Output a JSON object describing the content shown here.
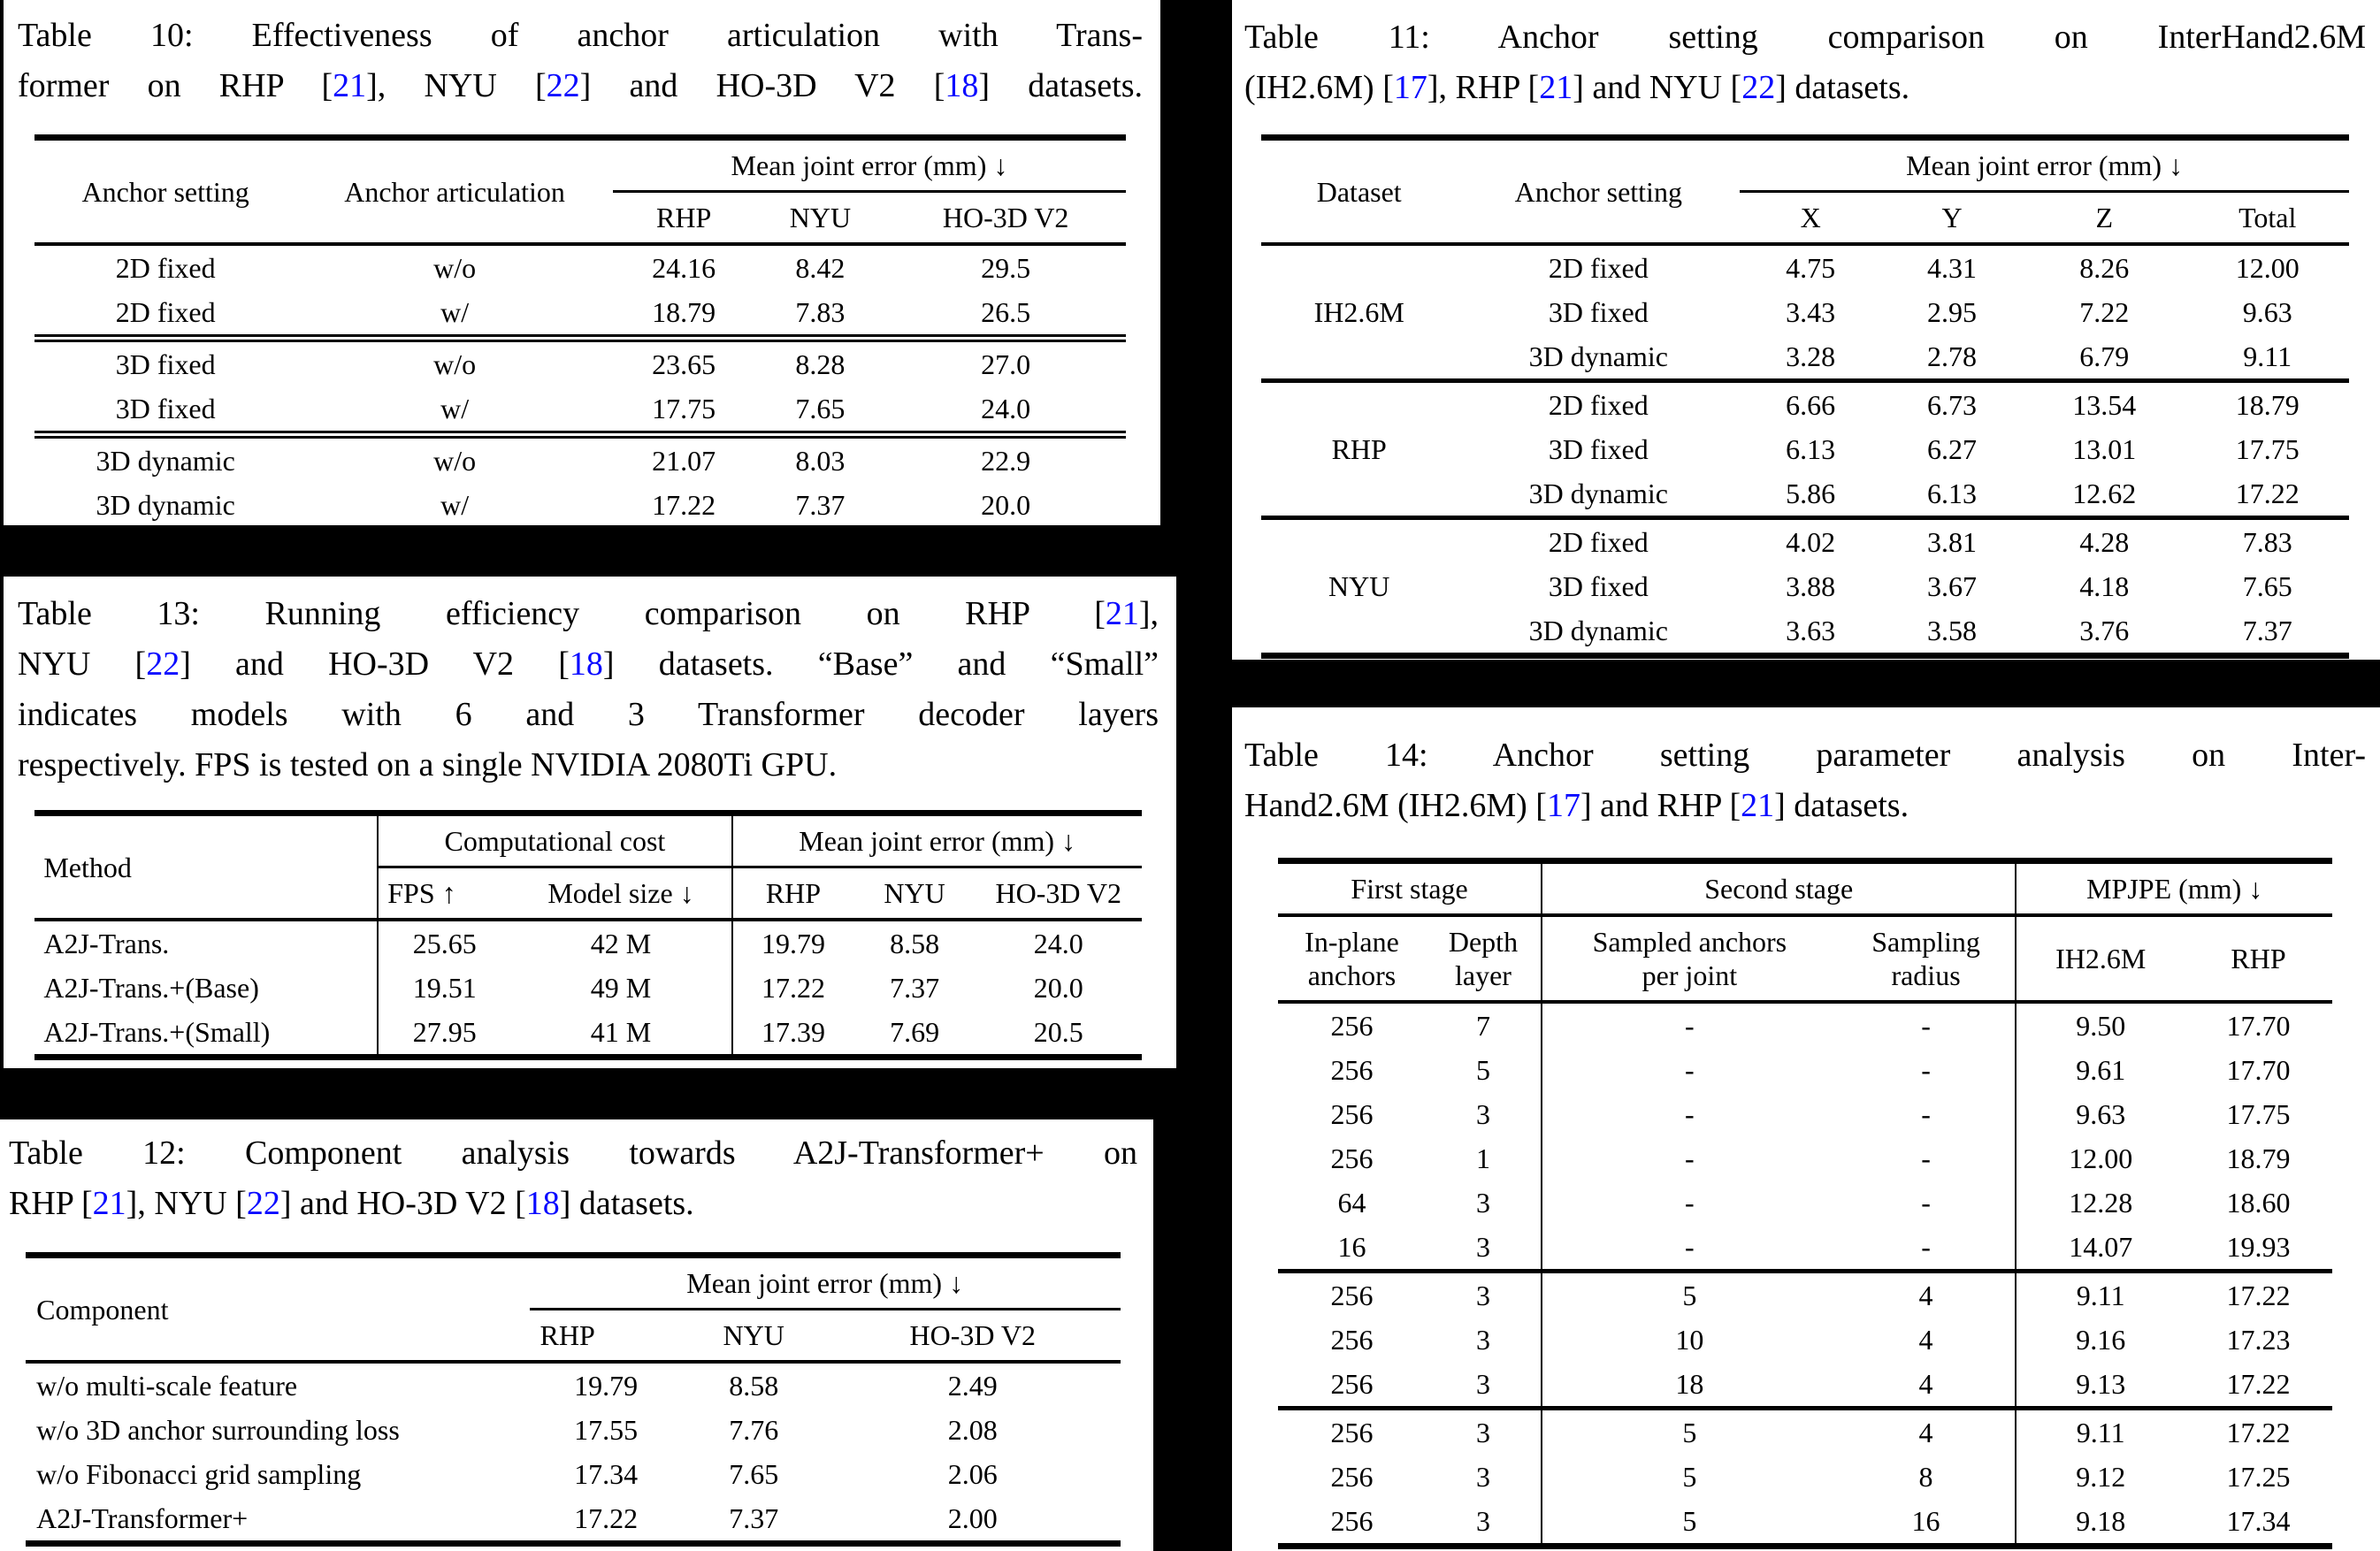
{
  "page": {
    "background": "#000000",
    "panel_background": "#ffffff",
    "text_color": "#000000",
    "citation_color": "#0a0aff"
  },
  "tables": {
    "t10": {
      "caption": {
        "justify_last": true,
        "lines": [
          [
            {
              "t": "Table 10: Effectiveness of anchor articulation with Trans-"
            }
          ],
          [
            {
              "t": "former on RHP ["
            },
            {
              "t": "21",
              "c": true
            },
            {
              "t": "], NYU ["
            },
            {
              "t": "22",
              "c": true
            },
            {
              "t": "] and HO-3D V2 ["
            },
            {
              "t": "18",
              "c": true
            },
            {
              "t": "] datasets."
            }
          ]
        ]
      },
      "headers": {
        "anchor_setting": "Anchor setting",
        "anchor_articulation": "Anchor articulation",
        "mean_joint_error": "Mean joint error (mm) ↓",
        "sub": [
          "RHP",
          "NYU",
          "HO-3D V2"
        ]
      },
      "body": [
        {
          "rows": [
            [
              "2D fixed",
              "w/o",
              "24.16",
              "8.42",
              "29.5"
            ],
            [
              "2D fixed",
              "w/",
              "18.79",
              "7.83",
              "26.5"
            ]
          ]
        },
        {
          "rows": [
            [
              "3D fixed",
              "w/o",
              "23.65",
              "8.28",
              "27.0"
            ],
            [
              "3D fixed",
              "w/",
              "17.75",
              "7.65",
              "24.0"
            ]
          ]
        },
        {
          "rows": [
            [
              "3D dynamic",
              "w/o",
              "21.07",
              "8.03",
              "22.9"
            ],
            [
              "3D dynamic",
              "w/",
              "17.22",
              "7.37",
              "20.0"
            ]
          ]
        }
      ]
    },
    "t11": {
      "caption": {
        "justify_last": false,
        "lines": [
          [
            {
              "t": "Table 11: Anchor setting comparison on InterHand2.6M"
            }
          ],
          [
            {
              "t": "(IH2.6M) ["
            },
            {
              "t": "17",
              "c": true
            },
            {
              "t": "], RHP ["
            },
            {
              "t": "21",
              "c": true
            },
            {
              "t": "] and NYU ["
            },
            {
              "t": "22",
              "c": true
            },
            {
              "t": "] datasets."
            }
          ]
        ]
      },
      "headers": {
        "dataset": "Dataset",
        "anchor_setting": "Anchor setting",
        "mean_joint_error": "Mean joint error (mm) ↓",
        "sub": [
          "X",
          "Y",
          "Z",
          "Total"
        ]
      },
      "body": [
        {
          "label": "IH2.6M",
          "rows": [
            [
              "2D fixed",
              "4.75",
              "4.31",
              "8.26",
              "12.00"
            ],
            [
              "3D fixed",
              "3.43",
              "2.95",
              "7.22",
              "9.63"
            ],
            [
              "3D dynamic",
              "3.28",
              "2.78",
              "6.79",
              "9.11"
            ]
          ]
        },
        {
          "label": "RHP",
          "rows": [
            [
              "2D fixed",
              "6.66",
              "6.73",
              "13.54",
              "18.79"
            ],
            [
              "3D fixed",
              "6.13",
              "6.27",
              "13.01",
              "17.75"
            ],
            [
              "3D dynamic",
              "5.86",
              "6.13",
              "12.62",
              "17.22"
            ]
          ]
        },
        {
          "label": "NYU",
          "rows": [
            [
              "2D fixed",
              "4.02",
              "3.81",
              "4.28",
              "7.83"
            ],
            [
              "3D fixed",
              "3.88",
              "3.67",
              "4.18",
              "7.65"
            ],
            [
              "3D dynamic",
              "3.63",
              "3.58",
              "3.76",
              "7.37"
            ]
          ]
        }
      ]
    },
    "t13": {
      "caption": {
        "justify_last": false,
        "lines": [
          [
            {
              "t": "Table 13: Running efficiency comparison on RHP ["
            },
            {
              "t": "21",
              "c": true
            },
            {
              "t": "],"
            }
          ],
          [
            {
              "t": "NYU ["
            },
            {
              "t": "22",
              "c": true
            },
            {
              "t": "] and HO-3D V2 ["
            },
            {
              "t": "18",
              "c": true
            },
            {
              "t": "] datasets. “Base” and “Small”"
            }
          ],
          [
            {
              "t": "indicates models with 6 and 3 Transformer decoder layers"
            }
          ],
          [
            {
              "t": "respectively. FPS is tested on a single NVIDIA 2080Ti GPU."
            }
          ]
        ]
      },
      "headers": {
        "method": "Method",
        "computational_cost": "Computational cost",
        "mean_joint_error": "Mean joint error (mm) ↓",
        "sub": [
          "FPS ↑",
          "Model size ↓",
          "RHP",
          "NYU",
          "HO-3D V2"
        ]
      },
      "body": [
        {
          "rows": [
            [
              "A2J-Trans.",
              "25.65",
              "42 M",
              "19.79",
              "8.58",
              "24.0"
            ],
            [
              "A2J-Trans.+(Base)",
              "19.51",
              "49 M",
              "17.22",
              "7.37",
              "20.0"
            ],
            [
              "A2J-Trans.+(Small)",
              "27.95",
              "41 M",
              "17.39",
              "7.69",
              "20.5"
            ]
          ]
        }
      ]
    },
    "t12": {
      "caption": {
        "justify_last": false,
        "lines": [
          [
            {
              "t": "Table 12: Component analysis towards A2J-Transformer+ on"
            }
          ],
          [
            {
              "t": "RHP ["
            },
            {
              "t": "21",
              "c": true
            },
            {
              "t": "], NYU ["
            },
            {
              "t": "22",
              "c": true
            },
            {
              "t": "] and HO-3D V2 ["
            },
            {
              "t": "18",
              "c": true
            },
            {
              "t": "] datasets."
            }
          ]
        ]
      },
      "headers": {
        "component": "Component",
        "mean_joint_error": "Mean joint error (mm) ↓",
        "sub": [
          "RHP",
          "NYU",
          "HO-3D V2"
        ]
      },
      "body": [
        {
          "rows": [
            [
              "w/o multi-scale feature",
              "19.79",
              "8.58",
              "2.49"
            ],
            [
              "w/o 3D anchor surrounding loss",
              "17.55",
              "7.76",
              "2.08"
            ],
            [
              "w/o Fibonacci grid sampling",
              "17.34",
              "7.65",
              "2.06"
            ],
            [
              "A2J-Transformer+",
              "17.22",
              "7.37",
              "2.00"
            ]
          ]
        }
      ]
    },
    "t14": {
      "caption": {
        "justify_last": false,
        "lines": [
          [
            {
              "t": "Table 14: Anchor setting parameter analysis on Inter-"
            }
          ],
          [
            {
              "t": "Hand2.6M (IH2.6M) ["
            },
            {
              "t": "17",
              "c": true
            },
            {
              "t": "] and RHP ["
            },
            {
              "t": "21",
              "c": true
            },
            {
              "t": "] datasets."
            }
          ]
        ]
      },
      "headers": {
        "first_stage": "First stage",
        "second_stage": "Second stage",
        "mpjpe": "MPJPE (mm) ↓",
        "sub": [
          "In-plane\nanchors",
          "Depth\nlayer",
          "Sampled anchors\nper joint",
          "Sampling\nradius",
          "IH2.6M",
          "RHP"
        ]
      },
      "body": [
        {
          "rows": [
            [
              "256",
              "7",
              "-",
              "-",
              "9.50",
              "17.70"
            ],
            [
              "256",
              "5",
              "-",
              "-",
              "9.61",
              "17.70"
            ],
            [
              "256",
              "3",
              "-",
              "-",
              "9.63",
              "17.75"
            ],
            [
              "256",
              "1",
              "-",
              "-",
              "12.00",
              "18.79"
            ],
            [
              "64",
              "3",
              "-",
              "-",
              "12.28",
              "18.60"
            ],
            [
              "16",
              "3",
              "-",
              "-",
              "14.07",
              "19.93"
            ]
          ]
        },
        {
          "rows": [
            [
              "256",
              "3",
              "5",
              "4",
              "9.11",
              "17.22"
            ],
            [
              "256",
              "3",
              "10",
              "4",
              "9.16",
              "17.23"
            ],
            [
              "256",
              "3",
              "18",
              "4",
              "9.13",
              "17.22"
            ]
          ]
        },
        {
          "rows": [
            [
              "256",
              "3",
              "5",
              "4",
              "9.11",
              "17.22"
            ],
            [
              "256",
              "3",
              "5",
              "8",
              "9.12",
              "17.25"
            ],
            [
              "256",
              "3",
              "5",
              "16",
              "9.18",
              "17.34"
            ]
          ]
        }
      ]
    }
  }
}
